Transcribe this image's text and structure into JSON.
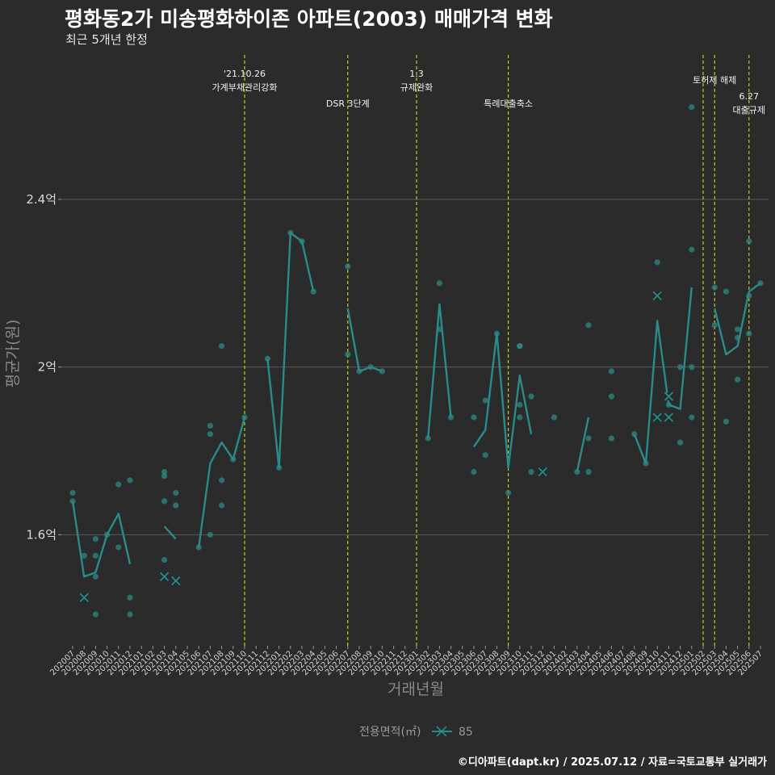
{
  "title": "평화동2가 미송평화하이존 아파트(2003) 매매가격 변화",
  "subtitle": "최근 5개년 한정",
  "caption": "©디아파트(dapt.kr) / 2025.07.12 / 자료=국토교통부 실거래가",
  "chart_data": {
    "type": "line",
    "xlabel": "거래년월",
    "ylabel": "평균가(원)",
    "ylim": [
      1.335,
      2.76
    ],
    "y_ticks": [
      1.6,
      2.0,
      2.4
    ],
    "y_tick_labels": [
      "1.6억",
      "2억",
      "2.4억"
    ],
    "categories": [
      "202007",
      "202008",
      "202009",
      "202010",
      "202011",
      "202012",
      "202101",
      "202102",
      "202103",
      "202104",
      "202105",
      "202106",
      "202107",
      "202108",
      "202109",
      "202110",
      "202111",
      "202112",
      "202201",
      "202202",
      "202203",
      "202204",
      "202205",
      "202206",
      "202207",
      "202208",
      "202209",
      "202210",
      "202211",
      "202212",
      "202301",
      "202302",
      "202303",
      "202304",
      "202305",
      "202306",
      "202307",
      "202308",
      "202309",
      "202310",
      "202311",
      "202312",
      "202401",
      "202402",
      "202403",
      "202404",
      "202405",
      "202406",
      "202407",
      "202408",
      "202409",
      "202410",
      "202411",
      "202412",
      "202501",
      "202502",
      "202503",
      "202504",
      "202505",
      "202506",
      "202507"
    ],
    "line_segments": [
      {
        "x": [
          "202007",
          "202008",
          "202009",
          "202010",
          "202011",
          "202012"
        ],
        "y": [
          1.68,
          1.5,
          1.51,
          1.6,
          1.65,
          1.53
        ]
      },
      {
        "x": [
          "202103",
          "202104"
        ],
        "y": [
          1.62,
          1.59
        ]
      },
      {
        "x": [
          "202106",
          "202107",
          "202108",
          "202109",
          "202110"
        ],
        "y": [
          1.57,
          1.77,
          1.82,
          1.78,
          1.88
        ]
      },
      {
        "x": [
          "202112",
          "202201",
          "202202",
          "202203",
          "202204"
        ],
        "y": [
          2.02,
          1.76,
          2.32,
          2.3,
          2.18
        ]
      },
      {
        "x": [
          "202207",
          "202208",
          "202209",
          "202210"
        ],
        "y": [
          2.14,
          1.99,
          2.0,
          1.99
        ]
      },
      {
        "x": [
          "202302",
          "202303",
          "202304"
        ],
        "y": [
          1.83,
          2.15,
          1.88
        ]
      },
      {
        "x": [
          "202306",
          "202307",
          "202308",
          "202309",
          "202310",
          "202311"
        ],
        "y": [
          1.81,
          1.85,
          2.08,
          1.76,
          1.98,
          1.84
        ]
      },
      {
        "x": [
          "202403",
          "202404"
        ],
        "y": [
          1.75,
          1.88
        ]
      },
      {
        "x": [
          "202408",
          "202409",
          "202410",
          "202411",
          "202412",
          "202501"
        ],
        "y": [
          1.84,
          1.77,
          2.11,
          1.91,
          1.9,
          2.19
        ]
      },
      {
        "x": [
          "202503",
          "202504",
          "202505",
          "202506",
          "202507"
        ],
        "y": [
          2.14,
          2.03,
          2.05,
          2.18,
          2.2
        ]
      }
    ],
    "points": [
      [
        "202007",
        1.7
      ],
      [
        "202007",
        1.68
      ],
      [
        "202008",
        1.55
      ],
      [
        "202009",
        1.59
      ],
      [
        "202009",
        1.55
      ],
      [
        "202009",
        1.5
      ],
      [
        "202009",
        1.41
      ],
      [
        "202010",
        1.6
      ],
      [
        "202011",
        1.72
      ],
      [
        "202011",
        1.57
      ],
      [
        "202012",
        1.73
      ],
      [
        "202012",
        1.45
      ],
      [
        "202012",
        1.41
      ],
      [
        "202103",
        1.75
      ],
      [
        "202103",
        1.74
      ],
      [
        "202103",
        1.68
      ],
      [
        "202103",
        1.54
      ],
      [
        "202104",
        1.7
      ],
      [
        "202104",
        1.67
      ],
      [
        "202106",
        1.57
      ],
      [
        "202107",
        1.86
      ],
      [
        "202107",
        1.84
      ],
      [
        "202107",
        1.6
      ],
      [
        "202108",
        2.05
      ],
      [
        "202108",
        1.73
      ],
      [
        "202108",
        1.67
      ],
      [
        "202109",
        1.78
      ],
      [
        "202110",
        1.88
      ],
      [
        "202112",
        2.02
      ],
      [
        "202201",
        1.76
      ],
      [
        "202202",
        2.32
      ],
      [
        "202203",
        2.3
      ],
      [
        "202204",
        2.18
      ],
      [
        "202207",
        2.24
      ],
      [
        "202207",
        2.03
      ],
      [
        "202208",
        1.99
      ],
      [
        "202209",
        2.0
      ],
      [
        "202210",
        1.99
      ],
      [
        "202302",
        1.83
      ],
      [
        "202303",
        2.2
      ],
      [
        "202303",
        2.09
      ],
      [
        "202304",
        1.88
      ],
      [
        "202306",
        1.88
      ],
      [
        "202306",
        1.75
      ],
      [
        "202307",
        1.92
      ],
      [
        "202307",
        1.79
      ],
      [
        "202308",
        2.08
      ],
      [
        "202309",
        1.7
      ],
      [
        "202310",
        2.05
      ],
      [
        "202310",
        2.05
      ],
      [
        "202310",
        1.91
      ],
      [
        "202310",
        1.88
      ],
      [
        "202311",
        1.93
      ],
      [
        "202311",
        1.75
      ],
      [
        "202401",
        1.88
      ],
      [
        "202403",
        1.75
      ],
      [
        "202404",
        2.1
      ],
      [
        "202404",
        1.83
      ],
      [
        "202404",
        1.75
      ],
      [
        "202406",
        1.99
      ],
      [
        "202406",
        1.93
      ],
      [
        "202406",
        1.83
      ],
      [
        "202408",
        1.84
      ],
      [
        "202409",
        1.77
      ],
      [
        "202410",
        2.25
      ],
      [
        "202411",
        1.91
      ],
      [
        "202412",
        2.0
      ],
      [
        "202412",
        1.82
      ],
      [
        "202501",
        2.62
      ],
      [
        "202501",
        2.28
      ],
      [
        "202501",
        2.0
      ],
      [
        "202501",
        1.88
      ],
      [
        "202503",
        2.19
      ],
      [
        "202503",
        2.1
      ],
      [
        "202504",
        2.18
      ],
      [
        "202504",
        1.87
      ],
      [
        "202505",
        2.09
      ],
      [
        "202505",
        2.07
      ],
      [
        "202505",
        1.97
      ],
      [
        "202506",
        2.3
      ],
      [
        "202506",
        2.17
      ],
      [
        "202506",
        2.08
      ],
      [
        "202507",
        2.2
      ]
    ],
    "x_marks": [
      [
        "202008",
        1.45
      ],
      [
        "202103",
        1.5
      ],
      [
        "202104",
        1.49
      ],
      [
        "202312",
        1.75
      ],
      [
        "202410",
        2.17
      ],
      [
        "202410",
        1.88
      ],
      [
        "202411",
        1.93
      ],
      [
        "202411",
        1.88
      ]
    ],
    "events": [
      {
        "x": "202110",
        "label1": "'21.10.26",
        "label2": "가계부채관리강화"
      },
      {
        "x": "202207",
        "label1": "",
        "label2": "DSR 3단계"
      },
      {
        "x": "202301",
        "label1": "1.3",
        "label2": "규제완화"
      },
      {
        "x": "202309",
        "label1": "",
        "label2": "특례대출축소"
      },
      {
        "x": "202502",
        "label1": "",
        "label2": ""
      },
      {
        "x": "202503",
        "label1": "",
        "label2": "토허제 해제"
      },
      {
        "x": "202506",
        "label1": "6.27",
        "label2": "대출규제"
      }
    ],
    "legend_title": "전용면적(㎡)",
    "legend_label": "85",
    "colors": {
      "line": "#2a8b8b",
      "point": "#2f8a82",
      "x_mark": "#1f2b2b",
      "event": "#d7d71e",
      "grid": "#5a5a5a"
    }
  }
}
